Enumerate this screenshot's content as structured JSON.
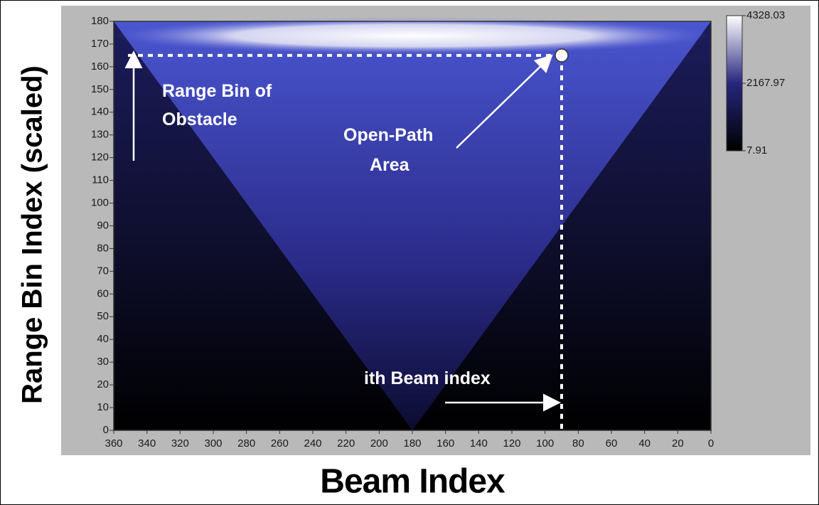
{
  "chart_data": {
    "type": "heatmap",
    "xlabel": "Beam Index",
    "ylabel": "Range Bin Index (scaled)",
    "xlim": [
      360,
      0
    ],
    "ylim": [
      0,
      180
    ],
    "xticks": [
      360,
      340,
      320,
      300,
      280,
      260,
      240,
      220,
      200,
      180,
      160,
      140,
      120,
      100,
      80,
      60,
      40,
      20,
      0
    ],
    "yticks": [
      0,
      10,
      20,
      30,
      40,
      50,
      60,
      70,
      80,
      90,
      100,
      110,
      120,
      130,
      140,
      150,
      160,
      170,
      180
    ],
    "colorbar": {
      "lim": [
        7.91,
        4328.03
      ],
      "ticks": [
        4328.03,
        2167.97,
        7.91
      ],
      "colors": [
        "#000000",
        "#26267e",
        "#ffffff"
      ]
    },
    "marker": {
      "x": 90,
      "y": 165
    },
    "annotations": [
      [
        "Range Bin of",
        "Obstacle"
      ],
      [
        "Open-Path",
        "Area"
      ],
      [
        "ith Beam index"
      ]
    ]
  }
}
